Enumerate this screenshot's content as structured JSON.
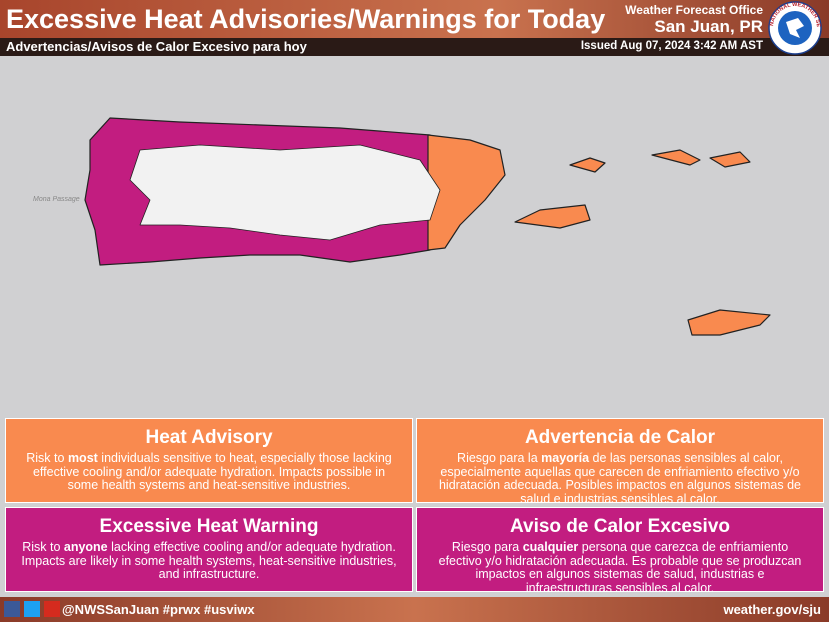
{
  "header": {
    "title": "Excessive Heat Advisories/Warnings for Today",
    "subtitle": "Advertencias/Avisos de Calor Excesivo para hoy",
    "office": "Weather Forecast Office",
    "location": "San Juan, PR",
    "issued": "Issued Aug 07, 2024 3:42 AM AST",
    "logo_text": "NATIONAL WEATHER SERVICE"
  },
  "map": {
    "label": "Mona Passage"
  },
  "boxes": [
    {
      "title": "Heat Advisory",
      "body": [
        "Risk to ",
        "most",
        " individuals sensitive to heat, especially those lacking effective cooling and/or adequate hydration. Impacts possible in some health systems and heat-sensitive industries."
      ]
    },
    {
      "title": "Advertencia de Calor",
      "body": [
        "Riesgo para la ",
        "mayoría",
        " de las personas sensibles al calor, especialmente aquellas que carecen de enfriamiento efectivo y/o hidratación adecuada. Posibles impactos en algunos sistemas de salud e industrias sensibles al calor."
      ]
    },
    {
      "title": "Excessive Heat Warning",
      "body": [
        "Risk to ",
        "anyone",
        " lacking effective cooling and/or adequate hydration. Impacts are likely in some health systems, heat-sensitive industries, and infrastructure."
      ]
    },
    {
      "title": "Aviso de Calor Excesivo",
      "body": [
        "Riesgo para ",
        "cualquier",
        " persona que carezca de enfriamiento efectivo y/o hidratación adecuada. Es probable que se produzcan impactos en algunos sistemas de salud, industrias e infraestructuras sensibles al calor."
      ]
    }
  ],
  "footer": {
    "handle": "@NWSSanJuan #prwx #usviwx",
    "url": "weather.gov/sju"
  }
}
